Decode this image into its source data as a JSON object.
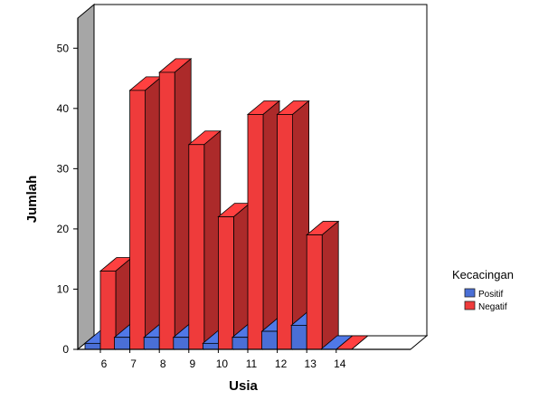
{
  "chart_data": {
    "type": "bar",
    "style": "3d-clustered",
    "xlabel": "Usia",
    "ylabel": "Jumlah",
    "categories": [
      "6",
      "7",
      "8",
      "9",
      "10",
      "11",
      "12",
      "13",
      "14"
    ],
    "ylim": [
      0,
      55
    ],
    "yticks": [
      0,
      10,
      20,
      30,
      40,
      50
    ],
    "grid": false,
    "legend": {
      "title": "Kecacingan",
      "placement": "right"
    },
    "series": [
      {
        "name": "Positif",
        "color": "#4a6fd6",
        "values": [
          1,
          2,
          2,
          2,
          1,
          2,
          3,
          4,
          0
        ]
      },
      {
        "name": "Negatif",
        "color": "#ef3b3b",
        "values": [
          13,
          43,
          46,
          34,
          22,
          39,
          39,
          19,
          0
        ]
      }
    ]
  }
}
